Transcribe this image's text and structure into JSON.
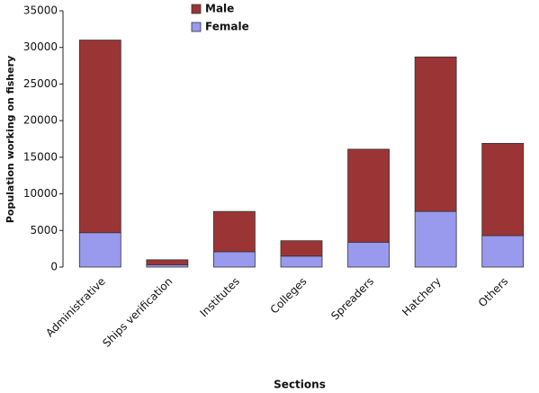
{
  "chart_data": {
    "type": "stacked_bar",
    "categories": [
      "Administrative",
      "Ships verification",
      "Institutes",
      "Colleges",
      "Spreaders",
      "Hatchery",
      "Others"
    ],
    "series": [
      {
        "name": "Male",
        "color": "#9b3535",
        "values": [
          26300,
          700,
          5500,
          2100,
          12700,
          21100,
          12600
        ]
      },
      {
        "name": "Female",
        "color": "#9999ee",
        "values": [
          4700,
          300,
          2100,
          1500,
          3400,
          7600,
          4300
        ]
      }
    ],
    "ylim": [
      0,
      35000
    ],
    "yticks": [
      0,
      5000,
      10000,
      15000,
      20000,
      25000,
      30000,
      35000
    ],
    "y_label": "Population working on fishery",
    "x_label": "Sections",
    "legend": "top"
  }
}
